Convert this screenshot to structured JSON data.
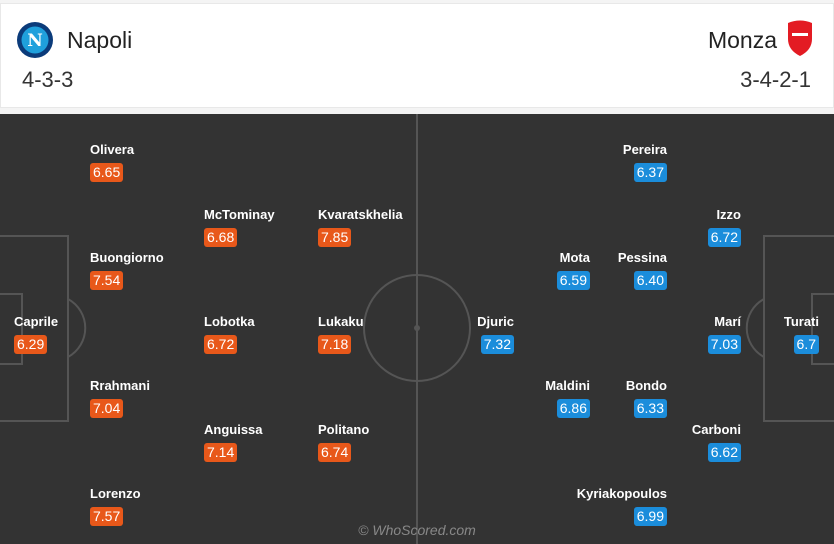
{
  "home": {
    "name": "Napoli",
    "formation": "4-3-3",
    "crest": "napoli-crest",
    "rating_color": "#e8581a",
    "players": [
      {
        "name": "Olivera",
        "rating": "6.65"
      },
      {
        "name": "McTominay",
        "rating": "6.68"
      },
      {
        "name": "Kvaratskhelia",
        "rating": "7.85"
      },
      {
        "name": "Buongiorno",
        "rating": "7.54"
      },
      {
        "name": "Caprile",
        "rating": "6.29"
      },
      {
        "name": "Lobotka",
        "rating": "6.72"
      },
      {
        "name": "Lukaku",
        "rating": "7.18"
      },
      {
        "name": "Rrahmani",
        "rating": "7.04"
      },
      {
        "name": "Anguissa",
        "rating": "7.14"
      },
      {
        "name": "Politano",
        "rating": "6.74"
      },
      {
        "name": "Lorenzo",
        "rating": "7.57"
      }
    ]
  },
  "away": {
    "name": "Monza",
    "formation": "3-4-2-1",
    "crest": "monza-crest",
    "rating_color": "#1b8ddb",
    "players": [
      {
        "name": "Pereira",
        "rating": "6.37"
      },
      {
        "name": "Izzo",
        "rating": "6.72"
      },
      {
        "name": "Mota",
        "rating": "6.59"
      },
      {
        "name": "Pessina",
        "rating": "6.40"
      },
      {
        "name": "Djuric",
        "rating": "7.32"
      },
      {
        "name": "Marí",
        "rating": "7.03"
      },
      {
        "name": "Turati",
        "rating": "6.7"
      },
      {
        "name": "Maldini",
        "rating": "6.86"
      },
      {
        "name": "Bondo",
        "rating": "6.33"
      },
      {
        "name": "Carboni",
        "rating": "6.62"
      },
      {
        "name": "Kyriakopoulos",
        "rating": "6.99"
      }
    ]
  },
  "watermark": "© WhoScored.com"
}
